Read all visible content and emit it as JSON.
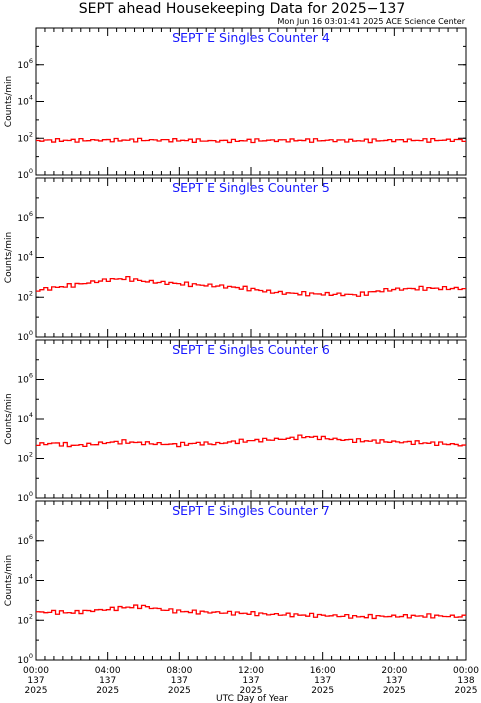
{
  "header": {
    "title": "SEPT ahead Housekeeping Data for 2025−137",
    "timestamp": "Mon Jun 16 03:01:41 2025 ACE Science Center"
  },
  "chart_data": [
    {
      "type": "line",
      "step": true,
      "title": "SEPT E Singles Counter 4",
      "ylabel": "Counts/min",
      "yscale": "log",
      "ylim": [
        1,
        100000000
      ],
      "yticks": [
        {
          "value": 1,
          "base": "10",
          "exp": "0"
        },
        {
          "value": 100,
          "base": "10",
          "exp": "2"
        },
        {
          "value": 10000,
          "base": "10",
          "exp": "4"
        },
        {
          "value": 1000000,
          "base": "10",
          "exp": "6"
        }
      ],
      "xlim": [
        0,
        24
      ],
      "color": "#ff0000",
      "series": [
        {
          "x": [
            0,
            3,
            6,
            9,
            10,
            12,
            15,
            18,
            21,
            24
          ],
          "y": [
            75,
            78,
            80,
            76,
            70,
            75,
            78,
            74,
            78,
            80
          ]
        }
      ]
    },
    {
      "type": "line",
      "step": true,
      "title": "SEPT E Singles Counter 5",
      "ylabel": "Counts/min",
      "yscale": "log",
      "ylim": [
        1,
        100000000
      ],
      "yticks": [
        {
          "value": 1,
          "base": "10",
          "exp": "0"
        },
        {
          "value": 100,
          "base": "10",
          "exp": "2"
        },
        {
          "value": 10000,
          "base": "10",
          "exp": "4"
        },
        {
          "value": 1000000,
          "base": "10",
          "exp": "6"
        }
      ],
      "xlim": [
        0,
        24
      ],
      "color": "#ff0000",
      "series": [
        {
          "x": [
            0,
            1,
            2,
            3,
            4,
            5,
            6,
            7,
            8,
            9,
            10,
            11,
            12,
            13,
            14,
            15,
            16,
            17,
            18,
            19,
            20,
            21,
            22,
            23,
            24
          ],
          "y": [
            220,
            300,
            400,
            550,
            750,
            900,
            650,
            550,
            480,
            420,
            380,
            320,
            260,
            190,
            160,
            150,
            145,
            140,
            130,
            200,
            250,
            270,
            280,
            280,
            270
          ]
        }
      ]
    },
    {
      "type": "line",
      "step": true,
      "title": "SEPT E Singles Counter 6",
      "ylabel": "Counts/min",
      "yscale": "log",
      "ylim": [
        1,
        100000000
      ],
      "yticks": [
        {
          "value": 1,
          "base": "10",
          "exp": "0"
        },
        {
          "value": 100,
          "base": "10",
          "exp": "2"
        },
        {
          "value": 10000,
          "base": "10",
          "exp": "4"
        },
        {
          "value": 1000000,
          "base": "10",
          "exp": "6"
        }
      ],
      "xlim": [
        0,
        24
      ],
      "color": "#ff0000",
      "series": [
        {
          "x": [
            0,
            1,
            2,
            3,
            4,
            5,
            6,
            7,
            8,
            9,
            10,
            11,
            12,
            13,
            14,
            15,
            16,
            17,
            18,
            19,
            20,
            21,
            22,
            23,
            24
          ],
          "y": [
            500,
            600,
            450,
            500,
            650,
            700,
            600,
            550,
            500,
            600,
            550,
            700,
            800,
            900,
            1000,
            1300,
            1100,
            900,
            800,
            750,
            700,
            650,
            600,
            550,
            450
          ]
        }
      ]
    },
    {
      "type": "line",
      "step": true,
      "title": "SEPT E Singles Counter 7",
      "ylabel": "Counts/min",
      "yscale": "log",
      "ylim": [
        1,
        100000000
      ],
      "yticks": [
        {
          "value": 1,
          "base": "10",
          "exp": "0"
        },
        {
          "value": 100,
          "base": "10",
          "exp": "2"
        },
        {
          "value": 10000,
          "base": "10",
          "exp": "4"
        },
        {
          "value": 1000000,
          "base": "10",
          "exp": "6"
        }
      ],
      "xlim": [
        0,
        24
      ],
      "color": "#ff0000",
      "series": [
        {
          "x": [
            0,
            1,
            2,
            3,
            4,
            5,
            6,
            7,
            8,
            9,
            10,
            11,
            12,
            13,
            14,
            15,
            16,
            17,
            18,
            19,
            20,
            21,
            22,
            23,
            24
          ],
          "y": [
            250,
            260,
            240,
            300,
            350,
            450,
            500,
            350,
            280,
            260,
            250,
            230,
            220,
            200,
            190,
            180,
            175,
            165,
            150,
            155,
            160,
            160,
            165,
            160,
            150
          ]
        }
      ]
    }
  ],
  "x_axis": {
    "label": "UTC Day of Year",
    "ticks": [
      {
        "value": 0,
        "time": "00:00",
        "day": "137",
        "year": "2025"
      },
      {
        "value": 4,
        "time": "04:00",
        "day": "137",
        "year": "2025"
      },
      {
        "value": 8,
        "time": "08:00",
        "day": "137",
        "year": "2025"
      },
      {
        "value": 12,
        "time": "12:00",
        "day": "137",
        "year": "2025"
      },
      {
        "value": 16,
        "time": "16:00",
        "day": "137",
        "year": "2025"
      },
      {
        "value": 20,
        "time": "20:00",
        "day": "137",
        "year": "2025"
      },
      {
        "value": 24,
        "time": "00:00",
        "day": "138",
        "year": "2025"
      }
    ],
    "minor_step": 0.5
  }
}
